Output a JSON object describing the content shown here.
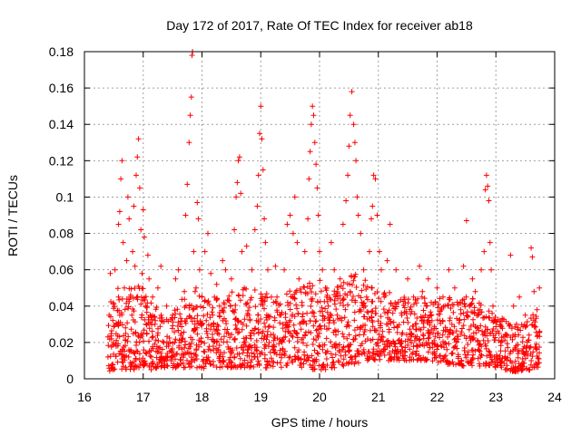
{
  "chart_data": {
    "type": "scatter",
    "title": "Day 172 of 2017, Rate Of TEC Index for receiver ab18",
    "xlabel": "GPS time / hours",
    "ylabel": "ROTI / TECUs",
    "xlim": [
      16,
      24
    ],
    "ylim": [
      0,
      0.18
    ],
    "xticks": [
      "16",
      "17",
      "18",
      "19",
      "20",
      "21",
      "22",
      "23",
      "24"
    ],
    "yticks": [
      "0",
      "0.02",
      "0.04",
      "0.06",
      "0.08",
      "0.1",
      "0.12",
      "0.14",
      "0.16",
      "0.18"
    ],
    "grid": true,
    "marker": "+",
    "color": "#ff0000",
    "series": [
      {
        "name": "ROTI",
        "points": [
          [
            16.4,
            0.012
          ],
          [
            16.42,
            0.035
          ],
          [
            16.44,
            0.058
          ],
          [
            16.46,
            0.022
          ],
          [
            16.48,
            0.008
          ],
          [
            16.5,
            0.041
          ],
          [
            16.52,
            0.06
          ],
          [
            16.54,
            0.018
          ],
          [
            16.56,
            0.03
          ],
          [
            16.58,
            0.085
          ],
          [
            16.6,
            0.092
          ],
          [
            16.62,
            0.11
          ],
          [
            16.64,
            0.12
          ],
          [
            16.66,
            0.075
          ],
          [
            16.68,
            0.05
          ],
          [
            16.7,
            0.028
          ],
          [
            16.72,
            0.065
          ],
          [
            16.74,
            0.1
          ],
          [
            16.76,
            0.088
          ],
          [
            16.78,
            0.045
          ],
          [
            16.8,
            0.015
          ],
          [
            16.82,
            0.07
          ],
          [
            16.84,
            0.095
          ],
          [
            16.86,
            0.062
          ],
          [
            16.88,
            0.112
          ],
          [
            16.9,
            0.122
          ],
          [
            16.92,
            0.132
          ],
          [
            16.94,
            0.105
          ],
          [
            16.96,
            0.082
          ],
          [
            16.98,
            0.058
          ],
          [
            17.0,
            0.093
          ],
          [
            17.02,
            0.078
          ],
          [
            17.04,
            0.04
          ],
          [
            17.06,
            0.025
          ],
          [
            17.08,
            0.068
          ],
          [
            17.1,
            0.055
          ],
          [
            17.12,
            0.035
          ],
          [
            17.14,
            0.012
          ],
          [
            17.16,
            0.045
          ],
          [
            17.2,
            0.03
          ],
          [
            17.25,
            0.05
          ],
          [
            17.3,
            0.062
          ],
          [
            17.35,
            0.02
          ],
          [
            17.4,
            0.04
          ],
          [
            17.45,
            0.015
          ],
          [
            17.5,
            0.035
          ],
          [
            17.55,
            0.055
          ],
          [
            17.6,
            0.06
          ],
          [
            17.65,
            0.025
          ],
          [
            17.7,
            0.048
          ],
          [
            17.72,
            0.09
          ],
          [
            17.75,
            0.107
          ],
          [
            17.78,
            0.13
          ],
          [
            17.8,
            0.145
          ],
          [
            17.82,
            0.155
          ],
          [
            17.83,
            0.178
          ],
          [
            17.84,
            0.18
          ],
          [
            17.86,
            0.07
          ],
          [
            17.88,
            0.03
          ],
          [
            17.9,
            0.05
          ],
          [
            17.92,
            0.097
          ],
          [
            17.94,
            0.088
          ],
          [
            17.96,
            0.06
          ],
          [
            18.0,
            0.045
          ],
          [
            18.05,
            0.07
          ],
          [
            18.1,
            0.08
          ],
          [
            18.15,
            0.058
          ],
          [
            18.2,
            0.03
          ],
          [
            18.25,
            0.052
          ],
          [
            18.3,
            0.04
          ],
          [
            18.35,
            0.065
          ],
          [
            18.4,
            0.06
          ],
          [
            18.45,
            0.025
          ],
          [
            18.5,
            0.055
          ],
          [
            18.55,
            0.082
          ],
          [
            18.58,
            0.1
          ],
          [
            18.6,
            0.108
          ],
          [
            18.62,
            0.12
          ],
          [
            18.64,
            0.122
          ],
          [
            18.66,
            0.102
          ],
          [
            18.68,
            0.07
          ],
          [
            18.72,
            0.05
          ],
          [
            18.76,
            0.073
          ],
          [
            18.8,
            0.035
          ],
          [
            18.85,
            0.06
          ],
          [
            18.9,
            0.082
          ],
          [
            18.94,
            0.095
          ],
          [
            18.96,
            0.112
          ],
          [
            18.98,
            0.135
          ],
          [
            19.0,
            0.15
          ],
          [
            19.02,
            0.132
          ],
          [
            19.04,
            0.115
          ],
          [
            19.06,
            0.088
          ],
          [
            19.08,
            0.075
          ],
          [
            19.12,
            0.06
          ],
          [
            19.18,
            0.045
          ],
          [
            19.25,
            0.062
          ],
          [
            19.32,
            0.035
          ],
          [
            19.4,
            0.06
          ],
          [
            19.45,
            0.085
          ],
          [
            19.5,
            0.09
          ],
          [
            19.55,
            0.08
          ],
          [
            19.58,
            0.1
          ],
          [
            19.62,
            0.075
          ],
          [
            19.65,
            0.055
          ],
          [
            19.7,
            0.042
          ],
          [
            19.75,
            0.07
          ],
          [
            19.8,
            0.088
          ],
          [
            19.82,
            0.11
          ],
          [
            19.84,
            0.125
          ],
          [
            19.86,
            0.14
          ],
          [
            19.88,
            0.15
          ],
          [
            19.9,
            0.145
          ],
          [
            19.92,
            0.13
          ],
          [
            19.94,
            0.118
          ],
          [
            19.96,
            0.105
          ],
          [
            19.98,
            0.09
          ],
          [
            20.0,
            0.07
          ],
          [
            20.05,
            0.06
          ],
          [
            20.1,
            0.05
          ],
          [
            20.15,
            0.04
          ],
          [
            20.2,
            0.075
          ],
          [
            20.25,
            0.06
          ],
          [
            20.3,
            0.035
          ],
          [
            20.35,
            0.055
          ],
          [
            20.4,
            0.085
          ],
          [
            20.45,
            0.098
          ],
          [
            20.48,
            0.112
          ],
          [
            20.5,
            0.128
          ],
          [
            20.52,
            0.145
          ],
          [
            20.55,
            0.158
          ],
          [
            20.58,
            0.14
          ],
          [
            20.6,
            0.13
          ],
          [
            20.62,
            0.12
          ],
          [
            20.64,
            0.1
          ],
          [
            20.66,
            0.09
          ],
          [
            20.7,
            0.08
          ],
          [
            20.75,
            0.06
          ],
          [
            20.8,
            0.045
          ],
          [
            20.85,
            0.07
          ],
          [
            20.88,
            0.088
          ],
          [
            20.9,
            0.095
          ],
          [
            20.92,
            0.112
          ],
          [
            20.95,
            0.11
          ],
          [
            20.98,
            0.09
          ],
          [
            21.02,
            0.07
          ],
          [
            21.05,
            0.06
          ],
          [
            21.1,
            0.045
          ],
          [
            21.15,
            0.065
          ],
          [
            21.2,
            0.085
          ],
          [
            21.25,
            0.04
          ],
          [
            21.3,
            0.06
          ],
          [
            21.4,
            0.035
          ],
          [
            21.5,
            0.055
          ],
          [
            21.6,
            0.045
          ],
          [
            21.7,
            0.062
          ],
          [
            21.75,
            0.048
          ],
          [
            21.8,
            0.035
          ],
          [
            21.85,
            0.055
          ],
          [
            21.9,
            0.042
          ],
          [
            22.0,
            0.05
          ],
          [
            22.05,
            0.032
          ],
          [
            22.1,
            0.045
          ],
          [
            22.2,
            0.06
          ],
          [
            22.3,
            0.05
          ],
          [
            22.4,
            0.038
          ],
          [
            22.45,
            0.062
          ],
          [
            22.5,
            0.087
          ],
          [
            22.55,
            0.04
          ],
          [
            22.6,
            0.055
          ],
          [
            22.65,
            0.048
          ],
          [
            22.7,
            0.035
          ],
          [
            22.75,
            0.06
          ],
          [
            22.8,
            0.07
          ],
          [
            22.82,
            0.104
          ],
          [
            22.84,
            0.112
          ],
          [
            22.86,
            0.106
          ],
          [
            22.88,
            0.098
          ],
          [
            22.9,
            0.075
          ],
          [
            22.92,
            0.06
          ],
          [
            22.95,
            0.04
          ],
          [
            23.0,
            0.025
          ],
          [
            23.25,
            0.068
          ],
          [
            23.3,
            0.04
          ],
          [
            23.35,
            0.03
          ],
          [
            23.4,
            0.045
          ],
          [
            23.5,
            0.035
          ],
          [
            23.6,
            0.072
          ],
          [
            23.62,
            0.067
          ],
          [
            23.65,
            0.048
          ],
          [
            23.7,
            0.038
          ],
          [
            23.74,
            0.05
          ]
        ],
        "dense_band": [
          [
            16.4,
            0.004,
            0.04
          ],
          [
            16.5,
            0.004,
            0.045
          ],
          [
            16.6,
            0.005,
            0.055
          ],
          [
            16.7,
            0.005,
            0.055
          ],
          [
            16.8,
            0.005,
            0.052
          ],
          [
            16.9,
            0.005,
            0.055
          ],
          [
            17.0,
            0.005,
            0.05
          ],
          [
            17.1,
            0.005,
            0.045
          ],
          [
            17.2,
            0.005,
            0.04
          ],
          [
            17.3,
            0.006,
            0.04
          ],
          [
            17.4,
            0.006,
            0.038
          ],
          [
            17.5,
            0.006,
            0.04
          ],
          [
            17.6,
            0.006,
            0.042
          ],
          [
            17.7,
            0.006,
            0.045
          ],
          [
            17.8,
            0.006,
            0.045
          ],
          [
            17.9,
            0.006,
            0.05
          ],
          [
            18.0,
            0.006,
            0.048
          ],
          [
            18.1,
            0.005,
            0.045
          ],
          [
            18.2,
            0.005,
            0.045
          ],
          [
            18.3,
            0.005,
            0.045
          ],
          [
            18.4,
            0.006,
            0.045
          ],
          [
            18.5,
            0.006,
            0.048
          ],
          [
            18.6,
            0.006,
            0.05
          ],
          [
            18.7,
            0.006,
            0.05
          ],
          [
            18.8,
            0.006,
            0.052
          ],
          [
            18.9,
            0.006,
            0.05
          ],
          [
            19.0,
            0.006,
            0.05
          ],
          [
            19.1,
            0.006,
            0.048
          ],
          [
            19.2,
            0.006,
            0.045
          ],
          [
            19.3,
            0.006,
            0.045
          ],
          [
            19.4,
            0.006,
            0.048
          ],
          [
            19.5,
            0.006,
            0.05
          ],
          [
            19.6,
            0.006,
            0.05
          ],
          [
            19.7,
            0.006,
            0.052
          ],
          [
            19.8,
            0.005,
            0.055
          ],
          [
            19.9,
            0.005,
            0.055
          ],
          [
            20.0,
            0.005,
            0.055
          ],
          [
            20.1,
            0.005,
            0.052
          ],
          [
            20.2,
            0.006,
            0.05
          ],
          [
            20.3,
            0.006,
            0.052
          ],
          [
            20.4,
            0.007,
            0.055
          ],
          [
            20.5,
            0.008,
            0.058
          ],
          [
            20.6,
            0.008,
            0.058
          ],
          [
            20.7,
            0.009,
            0.055
          ],
          [
            20.8,
            0.01,
            0.055
          ],
          [
            20.9,
            0.01,
            0.052
          ],
          [
            21.0,
            0.01,
            0.05
          ],
          [
            21.1,
            0.01,
            0.048
          ],
          [
            21.2,
            0.01,
            0.048
          ],
          [
            21.3,
            0.01,
            0.045
          ],
          [
            21.4,
            0.01,
            0.045
          ],
          [
            21.5,
            0.01,
            0.045
          ],
          [
            21.6,
            0.01,
            0.045
          ],
          [
            21.7,
            0.01,
            0.045
          ],
          [
            21.8,
            0.01,
            0.045
          ],
          [
            21.9,
            0.01,
            0.045
          ],
          [
            22.0,
            0.009,
            0.045
          ],
          [
            22.1,
            0.008,
            0.045
          ],
          [
            22.2,
            0.008,
            0.045
          ],
          [
            22.3,
            0.008,
            0.045
          ],
          [
            22.4,
            0.007,
            0.045
          ],
          [
            22.5,
            0.007,
            0.045
          ],
          [
            22.6,
            0.007,
            0.045
          ],
          [
            22.7,
            0.007,
            0.045
          ],
          [
            22.8,
            0.007,
            0.042
          ],
          [
            22.9,
            0.007,
            0.04
          ],
          [
            23.0,
            0.006,
            0.035
          ],
          [
            23.3,
            0.004,
            0.03
          ],
          [
            23.4,
            0.004,
            0.03
          ],
          [
            23.5,
            0.004,
            0.032
          ],
          [
            23.6,
            0.005,
            0.035
          ],
          [
            23.7,
            0.006,
            0.038
          ],
          [
            23.75,
            0.006,
            0.038
          ]
        ]
      }
    ]
  }
}
